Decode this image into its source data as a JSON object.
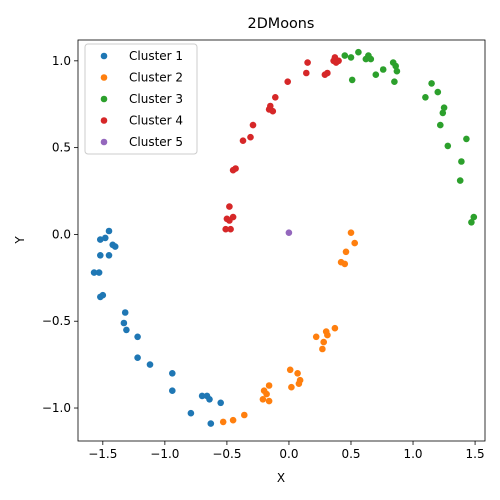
{
  "chart_data": {
    "type": "scatter",
    "title": "2DMoons",
    "xlabel": "X",
    "ylabel": "Y",
    "xlim": [
      -1.7,
      1.58
    ],
    "ylim": [
      -1.19,
      1.12
    ],
    "xticks": [
      -1.5,
      -1.0,
      -0.5,
      0.0,
      0.5,
      1.0,
      1.5
    ],
    "yticks": [
      -1.0,
      -0.5,
      0.0,
      0.5,
      1.0
    ],
    "xtick_labels": [
      "−1.5",
      "−1.0",
      "−0.5",
      "0.0",
      "0.5",
      "1.0",
      "1.5"
    ],
    "ytick_labels": [
      "−1.0",
      "−0.5",
      "0.0",
      "0.5",
      "1.0"
    ],
    "grid": false,
    "legend_position": "top-left",
    "series": [
      {
        "name": "Cluster 1",
        "color": "#1f77b4",
        "points": [
          [
            -1.45,
            0.02
          ],
          [
            -1.52,
            -0.03
          ],
          [
            -1.48,
            -0.02
          ],
          [
            -1.42,
            -0.06
          ],
          [
            -1.4,
            -0.07
          ],
          [
            -1.45,
            -0.12
          ],
          [
            -1.52,
            -0.12
          ],
          [
            -1.57,
            -0.22
          ],
          [
            -1.53,
            -0.22
          ],
          [
            -1.5,
            -0.35
          ],
          [
            -1.52,
            -0.36
          ],
          [
            -1.32,
            -0.45
          ],
          [
            -1.33,
            -0.51
          ],
          [
            -1.31,
            -0.55
          ],
          [
            -1.22,
            -0.59
          ],
          [
            -1.22,
            -0.71
          ],
          [
            -1.12,
            -0.75
          ],
          [
            -0.94,
            -0.8
          ],
          [
            -0.94,
            -0.9
          ],
          [
            -0.7,
            -0.93
          ],
          [
            -0.66,
            -0.93
          ],
          [
            -0.64,
            -0.95
          ],
          [
            -0.79,
            -1.03
          ],
          [
            -0.55,
            -0.97
          ],
          [
            -0.63,
            -1.09
          ]
        ]
      },
      {
        "name": "Cluster 2",
        "color": "#ff7f0e",
        "points": [
          [
            0.5,
            0.01
          ],
          [
            0.53,
            -0.05
          ],
          [
            0.46,
            -0.1
          ],
          [
            0.42,
            -0.16
          ],
          [
            0.45,
            -0.17
          ],
          [
            0.37,
            -0.54
          ],
          [
            0.3,
            -0.56
          ],
          [
            0.31,
            -0.58
          ],
          [
            0.28,
            -0.62
          ],
          [
            0.22,
            -0.59
          ],
          [
            0.27,
            -0.66
          ],
          [
            0.01,
            -0.78
          ],
          [
            0.07,
            -0.8
          ],
          [
            0.09,
            -0.84
          ],
          [
            0.08,
            -0.86
          ],
          [
            0.02,
            -0.88
          ],
          [
            -0.16,
            -0.87
          ],
          [
            -0.2,
            -0.9
          ],
          [
            -0.18,
            -0.92
          ],
          [
            -0.21,
            -0.95
          ],
          [
            -0.16,
            -0.96
          ],
          [
            -0.36,
            -1.04
          ],
          [
            -0.45,
            -1.07
          ],
          [
            -0.53,
            -1.08
          ]
        ]
      },
      {
        "name": "Cluster 3",
        "color": "#2ca02c",
        "points": [
          [
            0.45,
            1.03
          ],
          [
            0.5,
            1.02
          ],
          [
            0.56,
            1.05
          ],
          [
            0.62,
            1.01
          ],
          [
            0.64,
            1.03
          ],
          [
            0.66,
            1.01
          ],
          [
            0.51,
            0.89
          ],
          [
            0.7,
            0.92
          ],
          [
            0.76,
            0.95
          ],
          [
            0.84,
            0.99
          ],
          [
            0.86,
            0.97
          ],
          [
            0.87,
            0.94
          ],
          [
            0.85,
            0.88
          ],
          [
            1.1,
            0.79
          ],
          [
            1.15,
            0.87
          ],
          [
            1.2,
            0.82
          ],
          [
            1.25,
            0.73
          ],
          [
            1.24,
            0.7
          ],
          [
            1.22,
            0.63
          ],
          [
            1.28,
            0.51
          ],
          [
            1.43,
            0.55
          ],
          [
            1.39,
            0.42
          ],
          [
            1.38,
            0.31
          ],
          [
            1.47,
            0.07
          ],
          [
            1.49,
            0.1
          ]
        ]
      },
      {
        "name": "Cluster 4",
        "color": "#d62728",
        "points": [
          [
            0.37,
            1.02
          ],
          [
            0.4,
            1.0
          ],
          [
            0.36,
            1.0
          ],
          [
            0.38,
            0.99
          ],
          [
            0.15,
            0.99
          ],
          [
            0.31,
            0.93
          ],
          [
            0.29,
            0.92
          ],
          [
            0.14,
            0.93
          ],
          [
            -0.01,
            0.88
          ],
          [
            -0.11,
            0.79
          ],
          [
            -0.15,
            0.74
          ],
          [
            -0.16,
            0.72
          ],
          [
            -0.13,
            0.71
          ],
          [
            -0.29,
            0.63
          ],
          [
            -0.31,
            0.56
          ],
          [
            -0.37,
            0.54
          ],
          [
            -0.43,
            0.38
          ],
          [
            -0.45,
            0.37
          ],
          [
            -0.48,
            0.16
          ],
          [
            -0.45,
            0.1
          ],
          [
            -0.48,
            0.08
          ],
          [
            -0.5,
            0.09
          ],
          [
            -0.51,
            0.03
          ],
          [
            -0.47,
            0.03
          ]
        ]
      },
      {
        "name": "Cluster 5",
        "color": "#9467bd",
        "points": [
          [
            0.0,
            0.01
          ]
        ]
      }
    ]
  }
}
